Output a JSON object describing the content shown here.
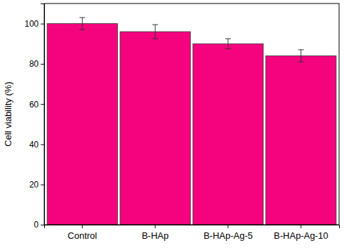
{
  "chart_data": {
    "type": "bar",
    "y_label": "Cell viability (%)",
    "categories": [
      "Control",
      "B-HAp",
      "B-HAp-Ag-5",
      "B-HAp-Ag-10"
    ],
    "values": [
      100,
      96,
      90,
      84
    ],
    "errors": [
      3,
      3.5,
      2.5,
      3
    ],
    "color": "#f5037f",
    "ylim": [
      0,
      110
    ],
    "yticks": [
      0,
      20,
      40,
      60,
      80,
      100
    ],
    "grid": false
  }
}
